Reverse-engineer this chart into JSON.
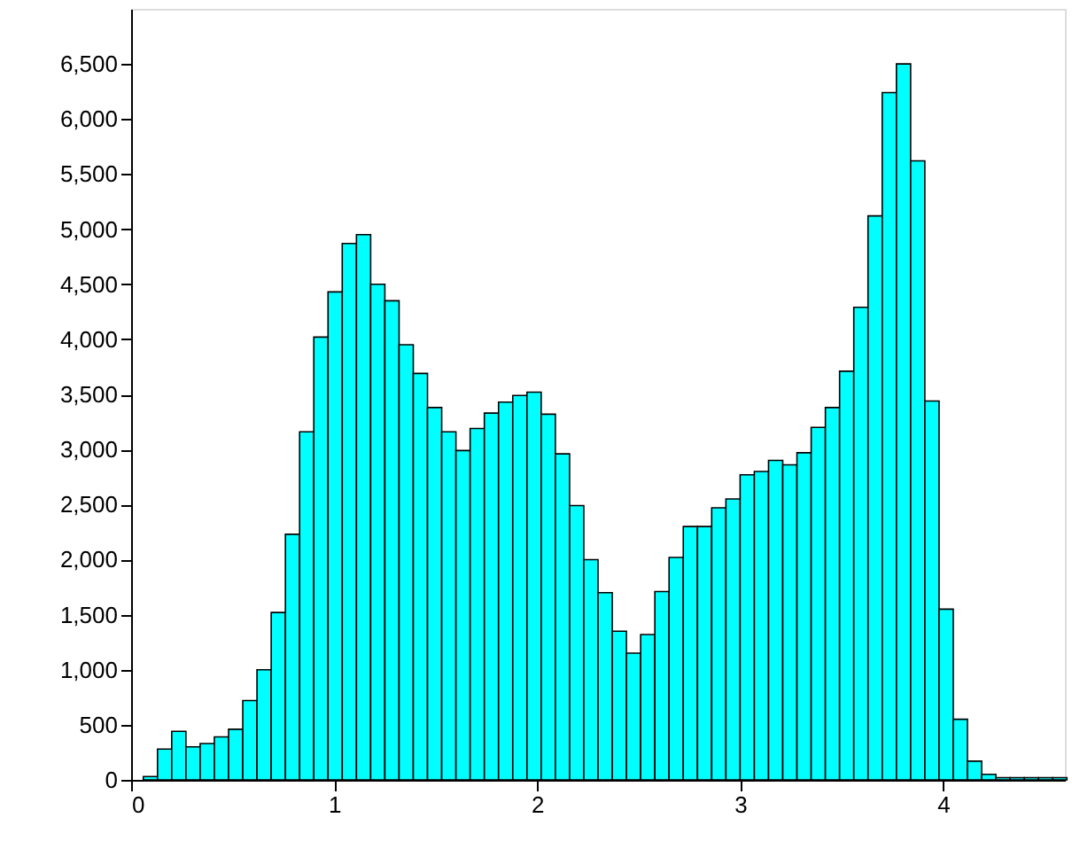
{
  "chart_data": {
    "type": "histogram",
    "bins": [
      0.06,
      0.13,
      0.2,
      0.27,
      0.34,
      0.41,
      0.48,
      0.55,
      0.62,
      0.69,
      0.76,
      0.83,
      0.9,
      0.97,
      1.04,
      1.11,
      1.18,
      1.25,
      1.32,
      1.39,
      1.46,
      1.53,
      1.6,
      1.67,
      1.74,
      1.81,
      1.88,
      1.95,
      2.02,
      2.09,
      2.16,
      2.23,
      2.3,
      2.37,
      2.44,
      2.51,
      2.58,
      2.65,
      2.72,
      2.79,
      2.86,
      2.93,
      3.0,
      3.07,
      3.14,
      3.21,
      3.28,
      3.35,
      3.42,
      3.49,
      3.56,
      3.63,
      3.7,
      3.77,
      3.84,
      3.91,
      3.98,
      4.05,
      4.12,
      4.19,
      4.26,
      4.33,
      4.4,
      4.47,
      4.54,
      4.61
    ],
    "values": [
      30,
      280,
      440,
      300,
      330,
      390,
      460,
      720,
      1000,
      1520,
      2230,
      3160,
      4020,
      4430,
      4870,
      4950,
      4500,
      4350,
      3950,
      3690,
      3380,
      3160,
      2990,
      3190,
      3330,
      3430,
      3490,
      3520,
      3320,
      2960,
      2490,
      2000,
      1700,
      1350,
      1150,
      1320,
      1710,
      2020,
      2300,
      2300,
      2470,
      2550,
      2770,
      2800,
      2900,
      2860,
      2970,
      3200,
      3380,
      3710,
      4290,
      5120,
      6240,
      6500,
      5620,
      3440,
      1550,
      550,
      170,
      50,
      20,
      20,
      20,
      20,
      20
    ],
    "color": "#00ffff",
    "xlim": [
      0,
      4.6
    ],
    "xticks": [
      0,
      1,
      2,
      3,
      4
    ],
    "ylim": [
      0,
      7000
    ],
    "yticks": [
      {
        "value": 0,
        "label": "0"
      },
      {
        "value": 500,
        "label": "500"
      },
      {
        "value": 1000,
        "label": "1,000"
      },
      {
        "value": 1500,
        "label": "1,500"
      },
      {
        "value": 2000,
        "label": "2,000"
      },
      {
        "value": 2500,
        "label": "2,500"
      },
      {
        "value": 3000,
        "label": "3,000"
      },
      {
        "value": 3500,
        "label": "3,500"
      },
      {
        "value": 4000,
        "label": "4,000"
      },
      {
        "value": 4500,
        "label": "4,500"
      },
      {
        "value": 5000,
        "label": "5,000"
      },
      {
        "value": 5500,
        "label": "5,500"
      },
      {
        "value": 6000,
        "label": "6,000"
      },
      {
        "value": 6500,
        "label": "6,500"
      }
    ],
    "grid": false
  }
}
